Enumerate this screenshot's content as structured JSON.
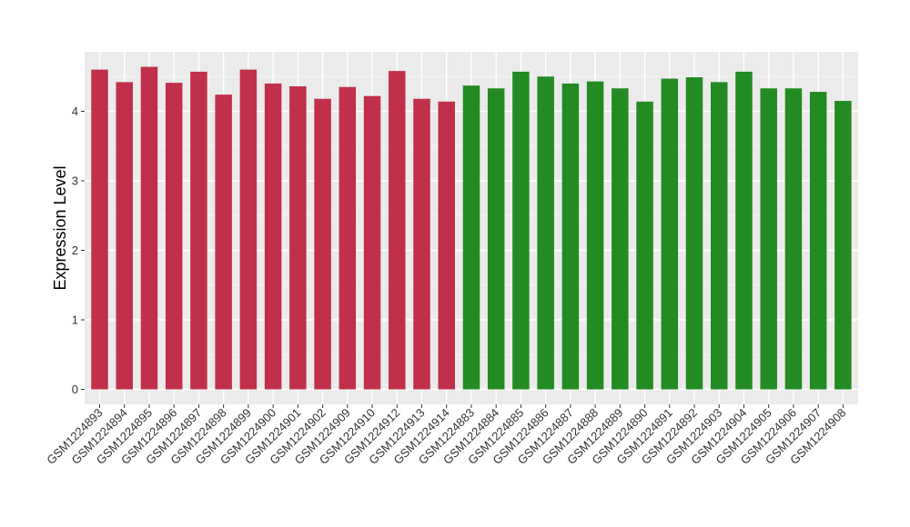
{
  "chart_data": {
    "type": "bar",
    "ylabel": "Expression Level",
    "xlabel": "",
    "ylim": [
      0,
      4.82
    ],
    "yticks": [
      0,
      1,
      2,
      3,
      4
    ],
    "grid": true,
    "background": "#ebebeb",
    "categories": [
      "GSM1224893",
      "GSM1224894",
      "GSM1224895",
      "GSM1224896",
      "GSM1224897",
      "GSM1224898",
      "GSM1224899",
      "GSM1224900",
      "GSM1224901",
      "GSM1224902",
      "GSM1224909",
      "GSM1224910",
      "GSM1224912",
      "GSM1224913",
      "GSM1224914",
      "GSM1224883",
      "GSM1224884",
      "GSM1224885",
      "GSM1224886",
      "GSM1224887",
      "GSM1224888",
      "GSM1224889",
      "GSM1224890",
      "GSM1224891",
      "GSM1224892",
      "GSM1224903",
      "GSM1224904",
      "GSM1224905",
      "GSM1224906",
      "GSM1224907",
      "GSM1224908"
    ],
    "values": [
      4.6,
      4.42,
      4.64,
      4.41,
      4.57,
      4.24,
      4.6,
      4.4,
      4.36,
      4.18,
      4.35,
      4.22,
      4.58,
      4.18,
      4.14,
      4.37,
      4.33,
      4.57,
      4.5,
      4.4,
      4.43,
      4.33,
      4.14,
      4.47,
      4.49,
      4.42,
      4.57,
      4.33,
      4.33,
      4.28,
      4.15
    ],
    "bar_colors": [
      "#c1304a",
      "#c1304a",
      "#c1304a",
      "#c1304a",
      "#c1304a",
      "#c1304a",
      "#c1304a",
      "#c1304a",
      "#c1304a",
      "#c1304a",
      "#c1304a",
      "#c1304a",
      "#c1304a",
      "#c1304a",
      "#c1304a",
      "#228b22",
      "#228b22",
      "#228b22",
      "#228b22",
      "#228b22",
      "#228b22",
      "#228b22",
      "#228b22",
      "#228b22",
      "#228b22",
      "#228b22",
      "#228b22",
      "#228b22",
      "#228b22",
      "#228b22",
      "#228b22"
    ]
  }
}
